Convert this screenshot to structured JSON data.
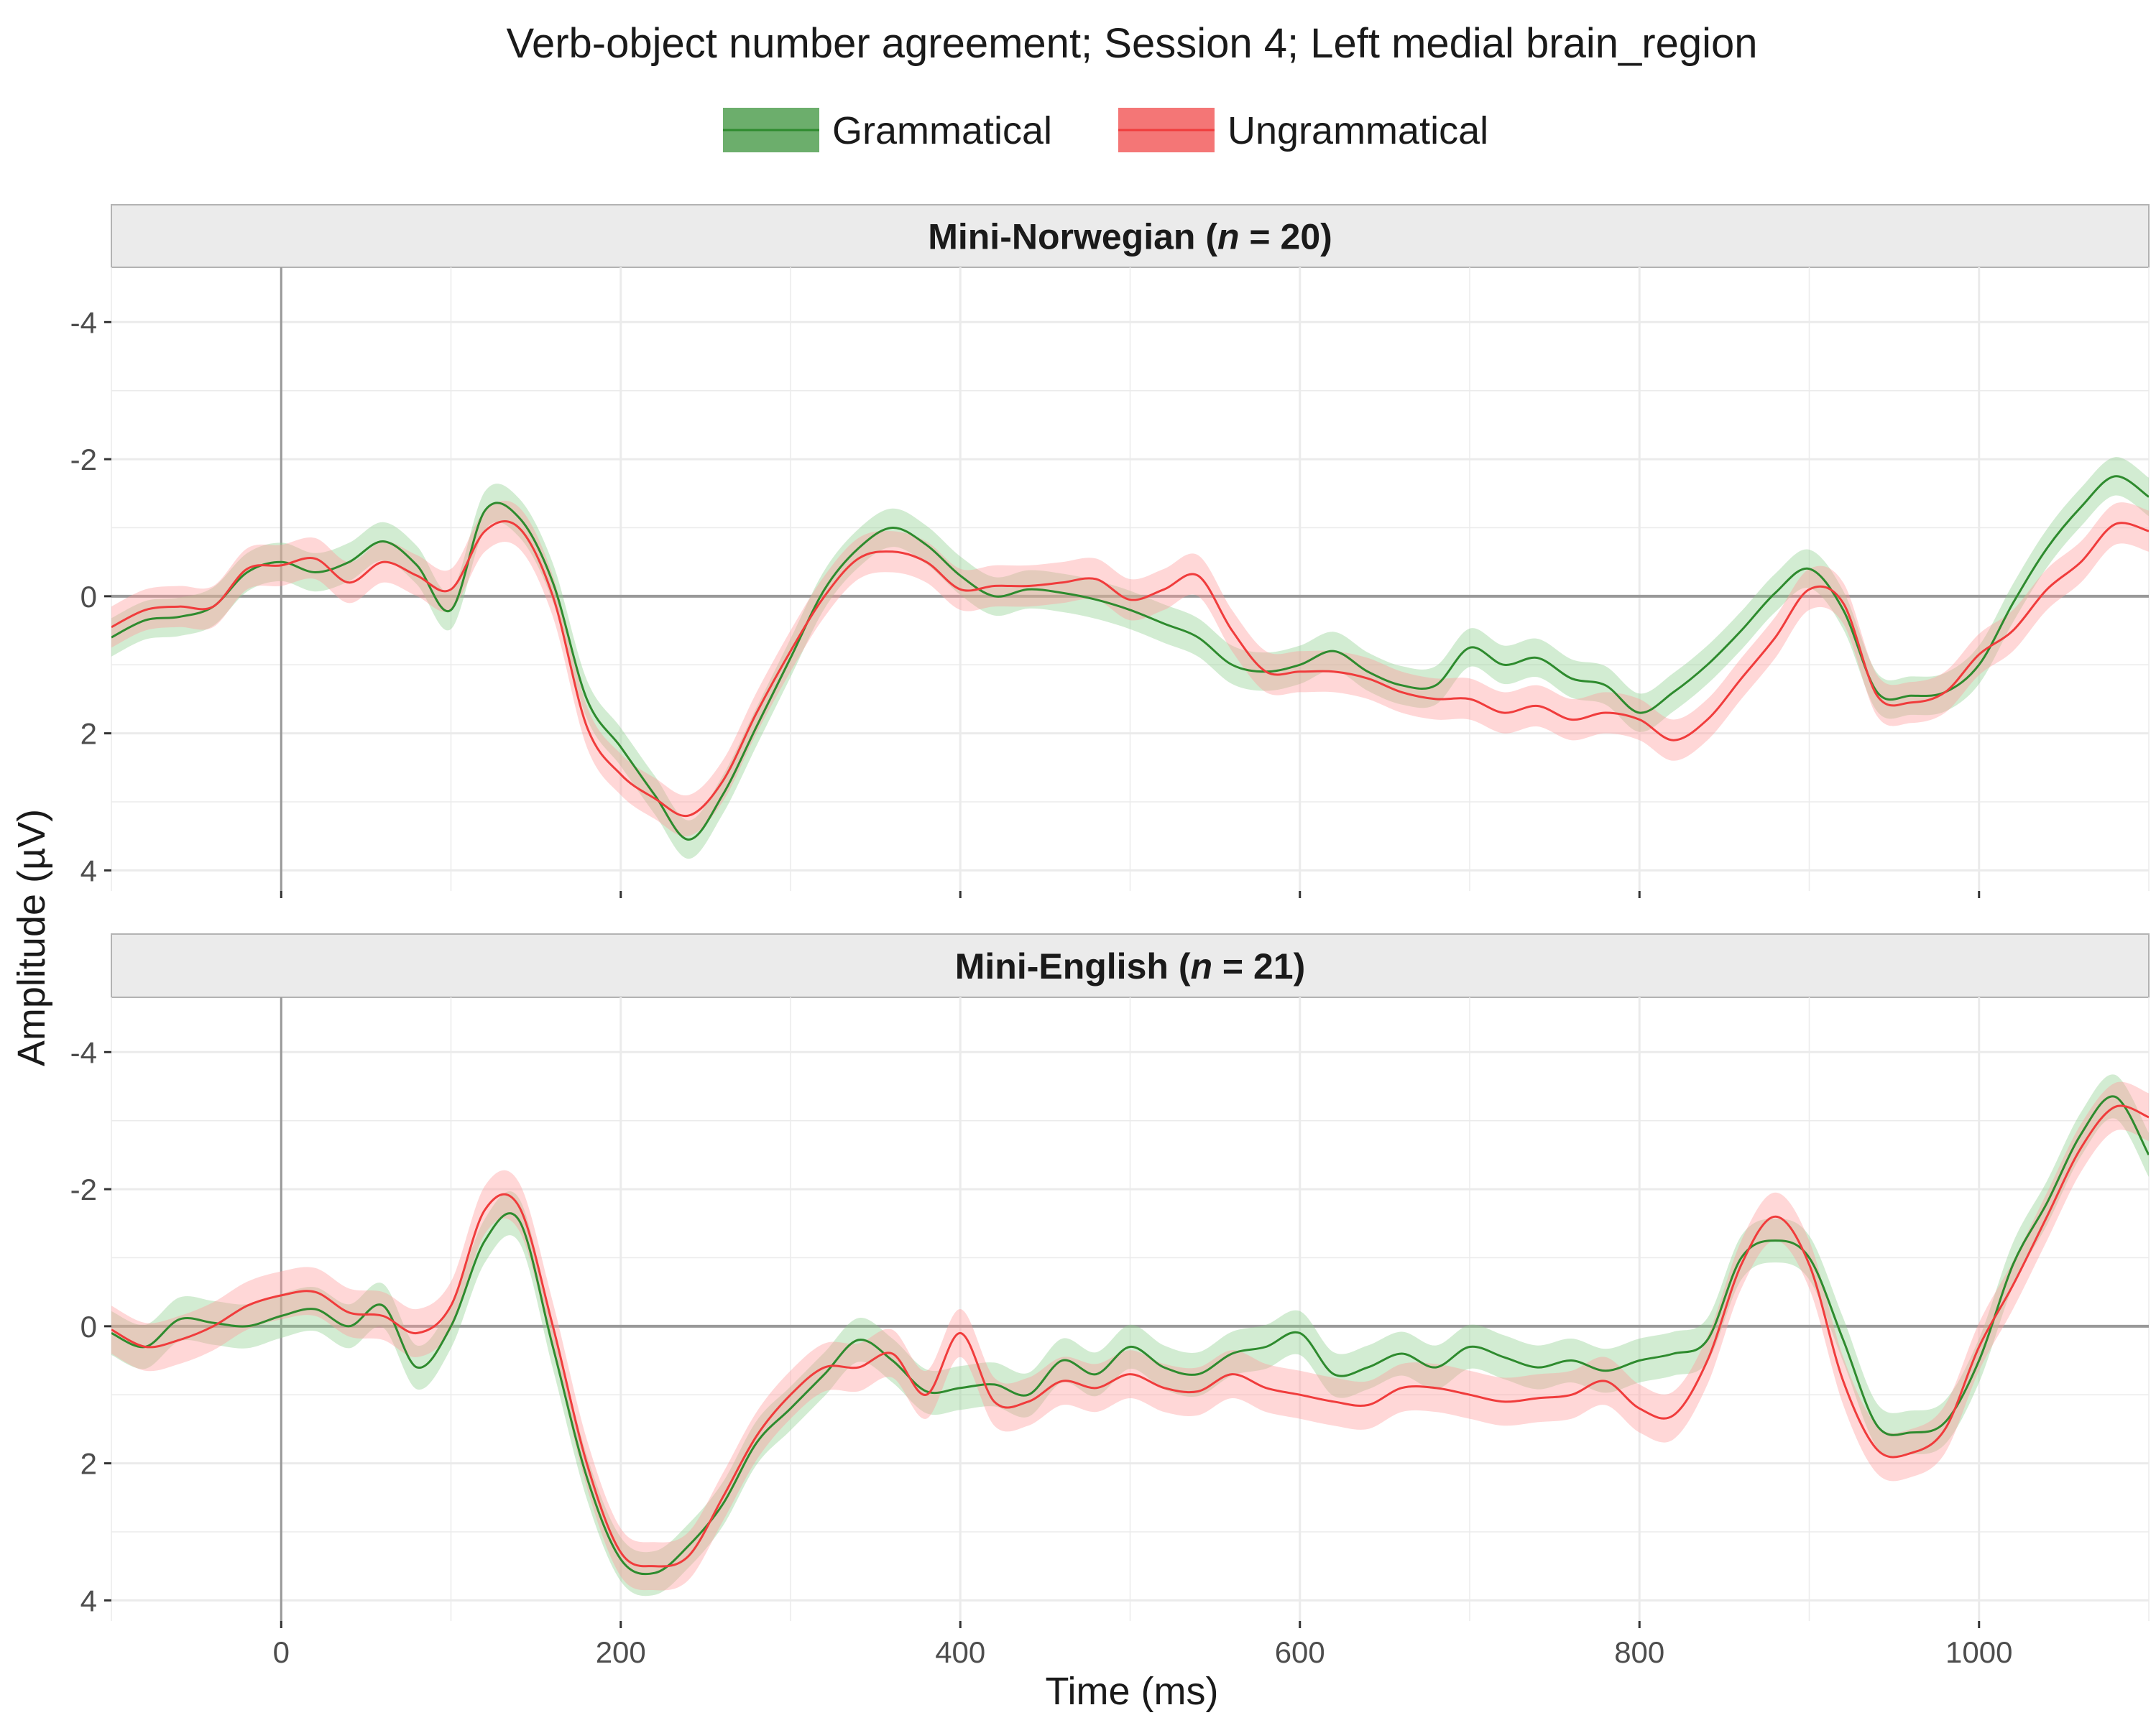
{
  "colors": {
    "grammatical": "#2e8b2e",
    "ungrammatical": "#f03c3c",
    "grammatical_ribbon": "#8fcf8f",
    "ungrammatical_ribbon": "#ff9a9a",
    "strip_bg": "#ebebeb",
    "grid": "#ebebeb",
    "zero_line": "#999999"
  },
  "chart_data": {
    "type": "line",
    "title": "Verb-object number agreement; Session 4; Left medial brain_region",
    "xlabel": "Time (ms)",
    "ylabel": "Amplitude (µV)",
    "xlim": [
      -100,
      1100
    ],
    "ylim": [
      -4,
      4
    ],
    "y_reversed": true,
    "x_ticks": [
      0,
      200,
      400,
      600,
      800,
      1000
    ],
    "y_ticks": [
      -4,
      -2,
      0,
      2,
      4
    ],
    "grid": true,
    "legend": {
      "position": "top",
      "entries": [
        "Grammatical",
        "Ungrammatical"
      ]
    },
    "panels": [
      {
        "strip_label_prefix": "Mini-Norwegian (",
        "strip_label_italic": "n",
        "strip_label_suffix": " = 20)",
        "x": [
          -100,
          -80,
          -60,
          -40,
          -20,
          0,
          20,
          40,
          60,
          80,
          100,
          120,
          140,
          160,
          180,
          200,
          220,
          240,
          260,
          280,
          300,
          320,
          340,
          360,
          380,
          400,
          420,
          440,
          460,
          480,
          500,
          520,
          540,
          560,
          580,
          600,
          620,
          640,
          660,
          680,
          700,
          720,
          740,
          760,
          780,
          800,
          820,
          840,
          860,
          880,
          900,
          920,
          940,
          960,
          980,
          1000,
          1020,
          1040,
          1060,
          1080,
          1100
        ],
        "series": [
          {
            "name": "Grammatical",
            "values": [
              0.6,
              0.35,
              0.3,
              0.15,
              -0.35,
              -0.5,
              -0.35,
              -0.5,
              -0.8,
              -0.45,
              0.2,
              -1.25,
              -1.15,
              -0.2,
              1.5,
              2.2,
              2.9,
              3.55,
              2.9,
              1.9,
              0.9,
              -0.1,
              -0.7,
              -1.0,
              -0.75,
              -0.3,
              0.0,
              -0.1,
              -0.05,
              0.05,
              0.2,
              0.4,
              0.6,
              1.0,
              1.1,
              1.0,
              0.8,
              1.1,
              1.3,
              1.3,
              0.75,
              1.0,
              0.9,
              1.2,
              1.3,
              1.7,
              1.4,
              1.0,
              0.5,
              -0.05,
              -0.4,
              0.2,
              1.4,
              1.45,
              1.4,
              1.0,
              0.1,
              -0.7,
              -1.3,
              -1.75,
              -1.45
            ],
            "band": 0.28
          },
          {
            "name": "Ungrammatical",
            "values": [
              0.45,
              0.2,
              0.15,
              0.15,
              -0.4,
              -0.45,
              -0.55,
              -0.2,
              -0.5,
              -0.3,
              -0.1,
              -0.95,
              -1.0,
              0.0,
              1.9,
              2.6,
              2.95,
              3.2,
              2.7,
              1.7,
              0.8,
              0.0,
              -0.55,
              -0.65,
              -0.5,
              -0.1,
              -0.15,
              -0.15,
              -0.2,
              -0.25,
              0.05,
              -0.1,
              -0.3,
              0.5,
              1.1,
              1.1,
              1.1,
              1.2,
              1.4,
              1.5,
              1.5,
              1.7,
              1.6,
              1.8,
              1.7,
              1.8,
              2.1,
              1.8,
              1.2,
              0.6,
              -0.1,
              0.1,
              1.45,
              1.55,
              1.4,
              0.85,
              0.5,
              -0.1,
              -0.5,
              -1.05,
              -0.95
            ],
            "band": 0.3
          }
        ]
      },
      {
        "strip_label_prefix": "Mini-English (",
        "strip_label_italic": "n",
        "strip_label_suffix": " = 21)",
        "x": [
          -100,
          -80,
          -60,
          -40,
          -20,
          0,
          20,
          40,
          60,
          80,
          100,
          120,
          140,
          160,
          180,
          200,
          220,
          240,
          260,
          280,
          300,
          320,
          340,
          360,
          380,
          400,
          420,
          440,
          460,
          480,
          500,
          520,
          540,
          560,
          580,
          600,
          620,
          640,
          660,
          680,
          700,
          720,
          740,
          760,
          780,
          800,
          820,
          840,
          860,
          880,
          900,
          920,
          940,
          960,
          980,
          1000,
          1020,
          1040,
          1060,
          1080,
          1100
        ],
        "series": [
          {
            "name": "Grammatical",
            "values": [
              0.1,
              0.3,
              -0.1,
              -0.05,
              0.0,
              -0.15,
              -0.25,
              0.0,
              -0.3,
              0.6,
              0.0,
              -1.25,
              -1.55,
              0.3,
              2.2,
              3.4,
              3.6,
              3.2,
              2.6,
              1.7,
              1.2,
              0.7,
              0.2,
              0.5,
              0.95,
              0.9,
              0.85,
              1.0,
              0.5,
              0.7,
              0.3,
              0.6,
              0.7,
              0.4,
              0.3,
              0.1,
              0.7,
              0.6,
              0.4,
              0.6,
              0.3,
              0.45,
              0.6,
              0.5,
              0.65,
              0.5,
              0.4,
              0.2,
              -1.0,
              -1.25,
              -1.0,
              0.2,
              1.45,
              1.55,
              1.4,
              0.5,
              -0.9,
              -1.8,
              -2.8,
              -3.35,
              -2.5
            ],
            "band": 0.32
          },
          {
            "name": "Ungrammatical",
            "values": [
              0.05,
              0.3,
              0.2,
              0.0,
              -0.3,
              -0.45,
              -0.5,
              -0.2,
              -0.15,
              0.1,
              -0.3,
              -1.7,
              -1.75,
              0.0,
              2.0,
              3.3,
              3.5,
              3.35,
              2.5,
              1.6,
              1.0,
              0.6,
              0.6,
              0.4,
              1.0,
              0.1,
              1.1,
              1.1,
              0.8,
              0.9,
              0.7,
              0.9,
              0.95,
              0.7,
              0.9,
              1.0,
              1.1,
              1.15,
              0.9,
              0.9,
              1.0,
              1.1,
              1.05,
              1.0,
              0.8,
              1.2,
              1.3,
              0.5,
              -0.9,
              -1.6,
              -0.9,
              0.8,
              1.8,
              1.85,
              1.5,
              0.3,
              -0.6,
              -1.6,
              -2.6,
              -3.2,
              -3.05
            ],
            "band": 0.35
          }
        ]
      }
    ]
  }
}
